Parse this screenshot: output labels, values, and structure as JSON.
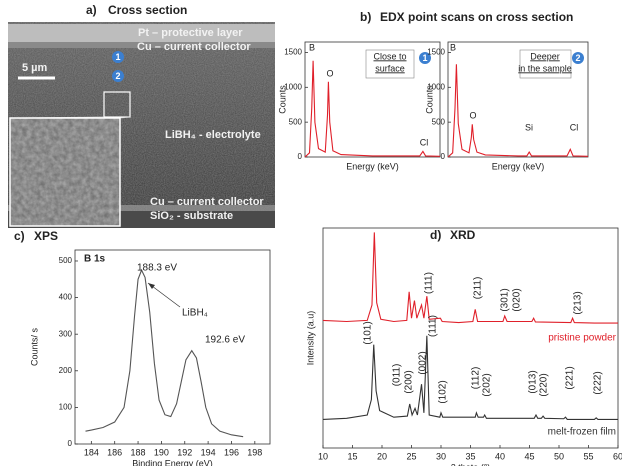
{
  "panels": {
    "a": {
      "label": "a)",
      "title": "Cross section",
      "texts": [
        "Pt – protective layer",
        "Cu – current collector",
        "5 µm",
        "LiBH₄ - electrolyte",
        "Cu – current collector",
        "SiO₂ - substrate"
      ],
      "markers": [
        "1",
        "2"
      ]
    },
    "b": {
      "label": "b)",
      "title": "EDX point scans on cross section",
      "markers": [
        "1",
        "2"
      ]
    },
    "c": {
      "label": "c)",
      "title": "XPS"
    },
    "d": {
      "label": "d)",
      "title": "XRD"
    }
  },
  "chart_data": [
    {
      "type": "line",
      "xlabel": "Energy (keV)",
      "ylabel": "Counts",
      "xlim": [
        0,
        3
      ],
      "ylim": [
        0,
        1650
      ],
      "yticks": [
        0,
        500,
        1000,
        1500
      ],
      "annotations": [
        "B",
        "O",
        "Cl"
      ],
      "notes": [
        "Close to",
        "surface"
      ],
      "series": [
        {
          "color": "#e0202a",
          "x": [
            0,
            0.1,
            0.15,
            0.18,
            0.22,
            0.3,
            0.45,
            0.5,
            0.52,
            0.55,
            0.62,
            0.8,
            1.5,
            2.55,
            2.62,
            2.68,
            3
          ],
          "values": [
            0,
            60,
            700,
            1380,
            500,
            120,
            70,
            600,
            1080,
            500,
            90,
            35,
            15,
            15,
            80,
            15,
            10
          ]
        }
      ]
    },
    {
      "type": "line",
      "xlabel": "Energy (keV)",
      "ylabel": "Counts",
      "xlim": [
        0,
        3
      ],
      "ylim": [
        0,
        1650
      ],
      "yticks": [
        0,
        500,
        1000,
        1500
      ],
      "annotations": [
        "B",
        "O",
        "Si",
        "Cl"
      ],
      "notes": [
        "Deeper",
        "in the sample"
      ],
      "series": [
        {
          "color": "#e0202a",
          "x": [
            0,
            0.1,
            0.15,
            0.18,
            0.22,
            0.3,
            0.45,
            0.5,
            0.52,
            0.55,
            0.62,
            0.8,
            1.5,
            1.69,
            1.74,
            1.79,
            2.55,
            2.62,
            2.68,
            3
          ],
          "values": [
            0,
            60,
            700,
            1330,
            480,
            110,
            60,
            280,
            470,
            250,
            70,
            30,
            15,
            15,
            70,
            15,
            15,
            110,
            15,
            10
          ]
        }
      ]
    },
    {
      "type": "line",
      "xlabel": "Binding Energy (eV)",
      "ylabel": "Counts/ s",
      "xlim": [
        182.6,
        199.3
      ],
      "ylim": [
        0,
        530
      ],
      "xticks": [
        184,
        186,
        188,
        190,
        192,
        194,
        196,
        198
      ],
      "yticks": [
        0,
        100,
        200,
        300,
        400,
        500
      ],
      "annotations": [
        "B 1s",
        "188.3 eV",
        "LiBH₄",
        "192.6 eV"
      ],
      "series": [
        {
          "color": "#555555",
          "x": [
            183.5,
            184,
            185,
            186,
            186.8,
            187.3,
            187.7,
            188.0,
            188.3,
            188.6,
            189.0,
            189.4,
            189.8,
            190.3,
            190.8,
            191.3,
            191.7,
            192.1,
            192.6,
            193.0,
            193.4,
            193.8,
            194.3,
            195,
            196,
            197
          ],
          "values": [
            35,
            38,
            45,
            60,
            100,
            200,
            350,
            450,
            475,
            455,
            360,
            220,
            120,
            80,
            75,
            110,
            170,
            230,
            255,
            235,
            170,
            100,
            55,
            35,
            25,
            20
          ]
        }
      ]
    },
    {
      "type": "line",
      "xlabel": "2 theta (°)",
      "ylabel": "Intensity (a.u)",
      "xlim": [
        10,
        60
      ],
      "ylim": [
        0,
        100
      ],
      "xticks": [
        10,
        15,
        20,
        25,
        30,
        35,
        40,
        45,
        50,
        55,
        60
      ],
      "annotations": [
        "(111)",
        "(211)",
        "(301)",
        "(020)",
        "(213)",
        "(101)",
        "(011)",
        "(200)",
        "(002)",
        "(111)",
        "(102)",
        "(112)",
        "(202)",
        "(013)",
        "(220)",
        "(221)",
        "(222)"
      ],
      "series": [
        {
          "name": "pristine powder",
          "color": "#e0202a",
          "x": [
            10,
            14,
            17.5,
            18.3,
            18.7,
            19.1,
            19.8,
            22,
            24.2,
            24.6,
            25.0,
            25.5,
            25.9,
            26.7,
            27.1,
            27.6,
            28.0,
            29.9,
            30.2,
            33,
            35.4,
            35.8,
            36.2,
            40.5,
            40.8,
            41.2,
            45.4,
            45.7,
            46,
            52,
            52.3,
            52.6,
            56,
            60
          ],
          "values": [
            58,
            57.5,
            58,
            65,
            98,
            66,
            58.5,
            57.5,
            58,
            71,
            59,
            67,
            59,
            65,
            59,
            69,
            58.5,
            59,
            57.5,
            57,
            57.5,
            63,
            57.5,
            57.5,
            60,
            57.5,
            57.5,
            59,
            57.3,
            57,
            59,
            57,
            56.8,
            56.8
          ]
        },
        {
          "name": "melt-frozen film",
          "color": "#333333",
          "x": [
            10,
            14,
            17.5,
            18.2,
            18.6,
            19.0,
            19.6,
            22,
            24.3,
            24.7,
            25.1,
            25.6,
            26.0,
            26.7,
            27.1,
            27.6,
            28.0,
            29.8,
            30.0,
            30.3,
            35.8,
            36.0,
            36.3,
            37.2,
            37.4,
            37.7,
            45.8,
            46.1,
            46.4,
            47,
            47.3,
            47.6,
            50.8,
            51.1,
            51.4,
            56,
            56.3,
            56.6,
            60
          ],
          "values": [
            13,
            13.5,
            15,
            22,
            47,
            26,
            17,
            14,
            14.5,
            20,
            15,
            18,
            15,
            29,
            16,
            51,
            15,
            14,
            16,
            14,
            14,
            16,
            14,
            14,
            15,
            13.5,
            13.5,
            15,
            13.5,
            13.5,
            14.5,
            13.5,
            13.3,
            14,
            13,
            13,
            13.7,
            13,
            13
          ]
        }
      ]
    }
  ]
}
